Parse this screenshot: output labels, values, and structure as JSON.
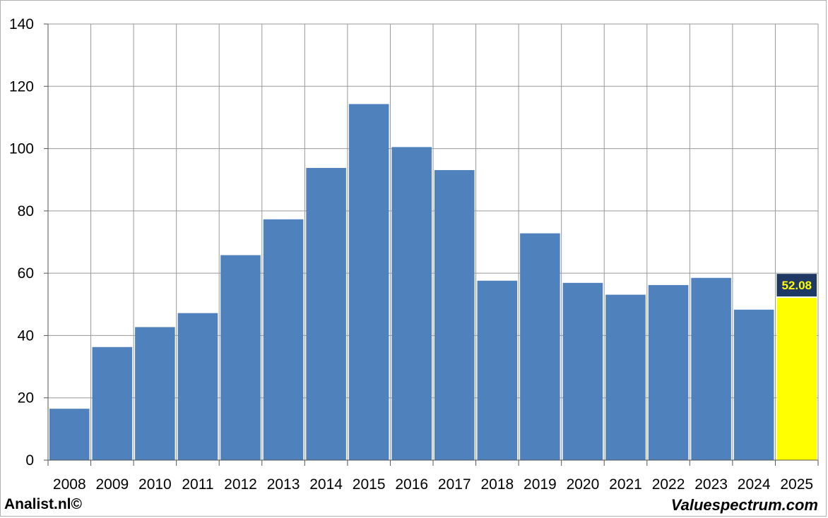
{
  "chart_data": {
    "type": "bar",
    "categories": [
      "2008",
      "2009",
      "2010",
      "2011",
      "2012",
      "2013",
      "2014",
      "2015",
      "2016",
      "2017",
      "2018",
      "2019",
      "2020",
      "2021",
      "2022",
      "2023",
      "2024",
      "2025"
    ],
    "values": [
      16.5,
      36.3,
      42.7,
      47.2,
      65.8,
      77.3,
      93.8,
      114.3,
      100.5,
      93.1,
      57.6,
      72.8,
      56.9,
      53.1,
      56.2,
      58.5,
      48.3,
      52.08
    ],
    "highlight_index": 17,
    "highlight_label": "52.08",
    "ylim": [
      0,
      140
    ],
    "yticks": [
      0,
      20,
      40,
      60,
      80,
      100,
      120,
      140
    ],
    "grid": true,
    "title": "",
    "xlabel": "",
    "ylabel": "",
    "colors": {
      "bar": "#4f81bd",
      "highlight_bar": "#ffff00",
      "label_bg": "#1f3864",
      "label_text": "#ffff00",
      "grid": "#999999"
    }
  },
  "footer": {
    "left": "Analist.nl©",
    "right": "Valuespectrum.com"
  }
}
